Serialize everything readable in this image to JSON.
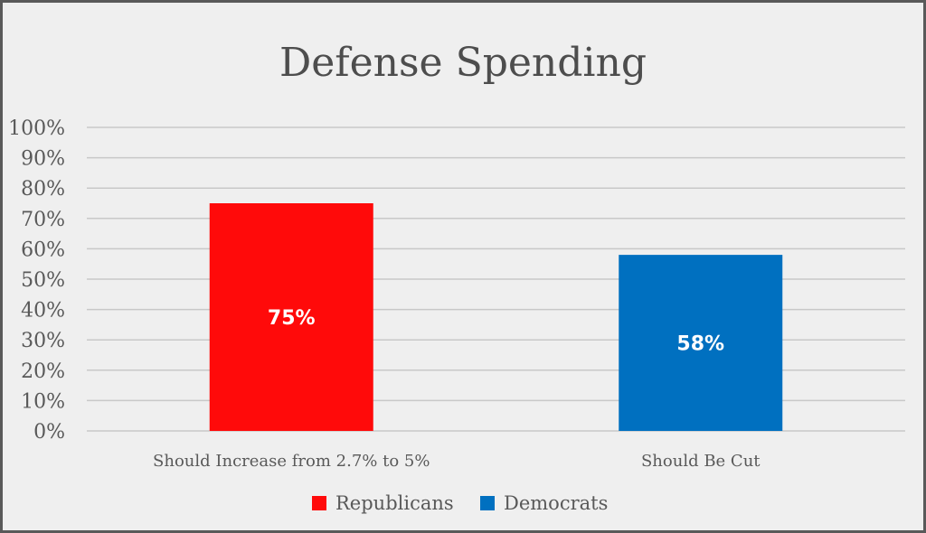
{
  "chart_data": {
    "type": "bar",
    "title": "Defense Spending",
    "categories": [
      "Should Increase from 2.7% to 5%",
      "Should Be Cut"
    ],
    "series": [
      {
        "name": "Republicans",
        "color": "#ff0a0a",
        "values": [
          75,
          null
        ],
        "labels": [
          "75%",
          ""
        ]
      },
      {
        "name": "Democrats",
        "color": "#0070c0",
        "values": [
          null,
          58
        ],
        "labels": [
          "",
          "58%"
        ]
      }
    ],
    "xlabel": "",
    "ylabel": "",
    "ylim": [
      0,
      100
    ],
    "yticks": [
      0,
      10,
      20,
      30,
      40,
      50,
      60,
      70,
      80,
      90,
      100
    ],
    "ytick_labels": [
      "0%",
      "10%",
      "20%",
      "30%",
      "40%",
      "50%",
      "60%",
      "70%",
      "80%",
      "90%",
      "100%"
    ],
    "grid": true,
    "legend": "bottom"
  },
  "colors": {
    "background": "#efefef",
    "border": "#595959",
    "grid": "#c8c8c8",
    "text": "#595959",
    "title": "#4d4d4d",
    "data_label": "#ffffff"
  }
}
